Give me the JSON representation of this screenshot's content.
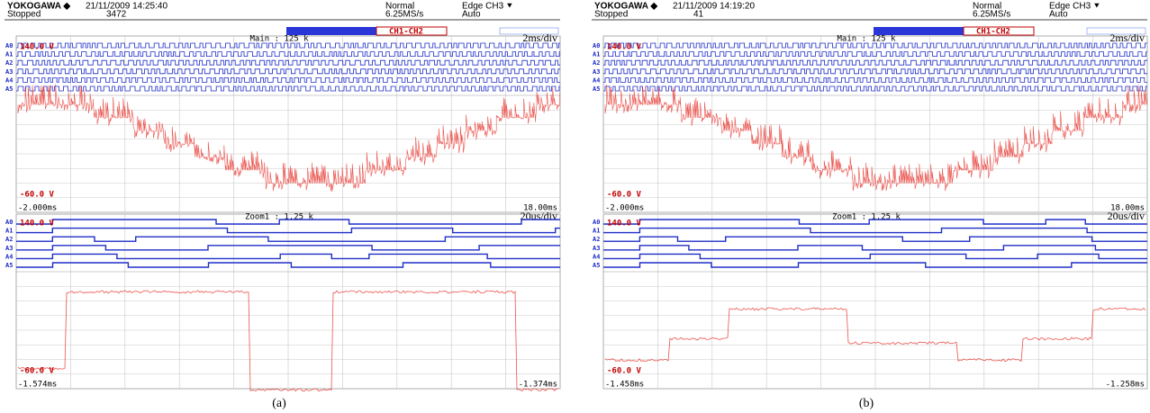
{
  "channels": [
    "A0",
    "A1",
    "A2",
    "A3",
    "A4",
    "A5"
  ],
  "panels": [
    {
      "header": {
        "brand": "YOKOGAWA ◆",
        "status": "Stopped",
        "datetime": "21/11/2009 14:25:40",
        "count": "3472",
        "mode": "Normal",
        "rate": "6.25MS/s",
        "trigger": "Edge CH3 ⯆",
        "trigger_mode": "Auto"
      },
      "math": "CH1-CH2",
      "main": {
        "label": "Main : 125 k",
        "timebase": "2ms/div",
        "v_top": "140.0 V",
        "v_bottom": "-60.0 V",
        "t_start": "-2.000ms",
        "t_end": "18.00ms"
      },
      "zoom": {
        "label": "Zoom1 : 1.25 k",
        "timebase": "20us/div",
        "v_top": "140.0 V",
        "v_bottom": "-60.0 V",
        "t_start": "-1.574ms",
        "t_end": "-1.374ms"
      },
      "caption": "(a)"
    },
    {
      "header": {
        "brand": "YOKOGAWA ◆",
        "status": "Stopped",
        "datetime": "21/11/2009 14:19:20",
        "count": "41",
        "mode": "Normal",
        "rate": "6.25MS/s",
        "trigger": "Edge CH3 ⯆",
        "trigger_mode": "Auto"
      },
      "math": "CH1-CH2",
      "main": {
        "label": "Main : 125 k",
        "timebase": "2ms/div",
        "v_top": "140.0 V",
        "v_bottom": "-60.0 V",
        "t_start": "-2.000ms",
        "t_end": "18.00ms"
      },
      "zoom": {
        "label": "Zoom1 : 1.25 k",
        "timebase": "20us/div",
        "v_top": "140.0 V",
        "v_bottom": "-60.0 V",
        "t_start": "-1.458ms",
        "t_end": "-1.258ms"
      },
      "caption": "(b)"
    }
  ]
}
